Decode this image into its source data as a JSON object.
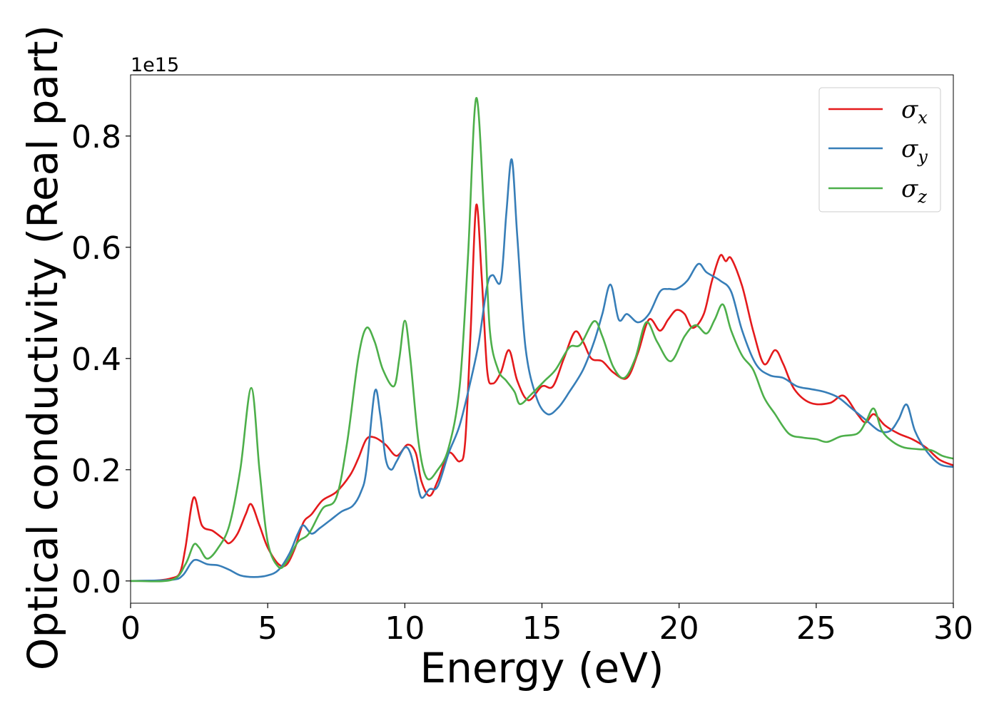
{
  "chart_data": {
    "type": "line",
    "title": "",
    "xlabel": "Energy (eV)",
    "ylabel": "Optical conductivity (Real part)",
    "y_offset_label": "1e15",
    "xlim": [
      0,
      30
    ],
    "ylim": [
      -0.04,
      0.91
    ],
    "xticks": [
      0,
      5,
      10,
      15,
      20,
      25,
      30
    ],
    "xtick_labels": [
      "0",
      "5",
      "10",
      "15",
      "20",
      "25",
      "30"
    ],
    "yticks": [
      0.0,
      0.2,
      0.4,
      0.6,
      0.8
    ],
    "ytick_labels": [
      "0.0",
      "0.2",
      "0.4",
      "0.6",
      "0.8"
    ],
    "grid": false,
    "legend_position": "top-right",
    "series": [
      {
        "name": "σx",
        "sym": "σ",
        "sub": "x",
        "color": "#e41a1c",
        "points": [
          [
            0,
            0
          ],
          [
            1,
            0.001
          ],
          [
            1.5,
            0.005
          ],
          [
            1.8,
            0.015
          ],
          [
            2.0,
            0.06
          ],
          [
            2.3,
            0.15
          ],
          [
            2.6,
            0.1
          ],
          [
            3.0,
            0.09
          ],
          [
            3.4,
            0.075
          ],
          [
            3.6,
            0.068
          ],
          [
            3.9,
            0.085
          ],
          [
            4.2,
            0.12
          ],
          [
            4.4,
            0.138
          ],
          [
            4.7,
            0.1
          ],
          [
            5.0,
            0.06
          ],
          [
            5.4,
            0.03
          ],
          [
            5.7,
            0.03
          ],
          [
            6.0,
            0.06
          ],
          [
            6.3,
            0.105
          ],
          [
            6.6,
            0.12
          ],
          [
            7.0,
            0.145
          ],
          [
            7.5,
            0.16
          ],
          [
            8.0,
            0.19
          ],
          [
            8.3,
            0.22
          ],
          [
            8.6,
            0.255
          ],
          [
            8.9,
            0.258
          ],
          [
            9.3,
            0.245
          ],
          [
            9.7,
            0.225
          ],
          [
            10.1,
            0.245
          ],
          [
            10.4,
            0.23
          ],
          [
            10.6,
            0.18
          ],
          [
            10.9,
            0.153
          ],
          [
            11.2,
            0.18
          ],
          [
            11.6,
            0.23
          ],
          [
            12.0,
            0.215
          ],
          [
            12.2,
            0.25
          ],
          [
            12.4,
            0.45
          ],
          [
            12.6,
            0.675
          ],
          [
            12.8,
            0.55
          ],
          [
            13.0,
            0.38
          ],
          [
            13.2,
            0.355
          ],
          [
            13.5,
            0.375
          ],
          [
            13.8,
            0.415
          ],
          [
            14.1,
            0.36
          ],
          [
            14.5,
            0.325
          ],
          [
            15.0,
            0.35
          ],
          [
            15.4,
            0.35
          ],
          [
            15.8,
            0.4
          ],
          [
            16.2,
            0.448
          ],
          [
            16.5,
            0.43
          ],
          [
            16.8,
            0.4
          ],
          [
            17.2,
            0.395
          ],
          [
            17.6,
            0.375
          ],
          [
            18.1,
            0.365
          ],
          [
            18.5,
            0.41
          ],
          [
            18.9,
            0.47
          ],
          [
            19.3,
            0.45
          ],
          [
            19.6,
            0.47
          ],
          [
            19.9,
            0.487
          ],
          [
            20.2,
            0.48
          ],
          [
            20.5,
            0.455
          ],
          [
            20.9,
            0.48
          ],
          [
            21.2,
            0.54
          ],
          [
            21.5,
            0.585
          ],
          [
            21.7,
            0.575
          ],
          [
            21.9,
            0.58
          ],
          [
            22.3,
            0.53
          ],
          [
            22.7,
            0.45
          ],
          [
            23.1,
            0.39
          ],
          [
            23.5,
            0.415
          ],
          [
            23.8,
            0.39
          ],
          [
            24.2,
            0.345
          ],
          [
            24.8,
            0.32
          ],
          [
            25.5,
            0.32
          ],
          [
            26.0,
            0.333
          ],
          [
            26.5,
            0.3
          ],
          [
            26.8,
            0.285
          ],
          [
            27.1,
            0.3
          ],
          [
            27.5,
            0.28
          ],
          [
            28.0,
            0.265
          ],
          [
            28.5,
            0.255
          ],
          [
            29.0,
            0.24
          ],
          [
            29.5,
            0.218
          ],
          [
            30.0,
            0.208
          ]
        ]
      },
      {
        "name": "σy",
        "sym": "σ",
        "sub": "y",
        "color": "#377eb8",
        "points": [
          [
            0,
            0
          ],
          [
            1.5,
            0.002
          ],
          [
            1.9,
            0.01
          ],
          [
            2.2,
            0.032
          ],
          [
            2.4,
            0.038
          ],
          [
            2.8,
            0.03
          ],
          [
            3.2,
            0.028
          ],
          [
            3.6,
            0.02
          ],
          [
            4.0,
            0.01
          ],
          [
            4.5,
            0.007
          ],
          [
            5.0,
            0.01
          ],
          [
            5.4,
            0.02
          ],
          [
            5.8,
            0.05
          ],
          [
            6.1,
            0.085
          ],
          [
            6.3,
            0.1
          ],
          [
            6.6,
            0.085
          ],
          [
            6.9,
            0.095
          ],
          [
            7.3,
            0.11
          ],
          [
            7.7,
            0.125
          ],
          [
            8.1,
            0.135
          ],
          [
            8.4,
            0.16
          ],
          [
            8.6,
            0.2
          ],
          [
            8.9,
            0.34
          ],
          [
            9.1,
            0.3
          ],
          [
            9.3,
            0.22
          ],
          [
            9.5,
            0.2
          ],
          [
            9.7,
            0.215
          ],
          [
            10.0,
            0.24
          ],
          [
            10.2,
            0.23
          ],
          [
            10.4,
            0.19
          ],
          [
            10.6,
            0.15
          ],
          [
            10.9,
            0.165
          ],
          [
            11.2,
            0.17
          ],
          [
            11.6,
            0.23
          ],
          [
            12.0,
            0.28
          ],
          [
            12.4,
            0.36
          ],
          [
            12.7,
            0.43
          ],
          [
            13.0,
            0.53
          ],
          [
            13.2,
            0.55
          ],
          [
            13.5,
            0.54
          ],
          [
            13.7,
            0.66
          ],
          [
            13.9,
            0.758
          ],
          [
            14.1,
            0.62
          ],
          [
            14.4,
            0.42
          ],
          [
            14.8,
            0.33
          ],
          [
            15.2,
            0.3
          ],
          [
            15.6,
            0.312
          ],
          [
            16.0,
            0.34
          ],
          [
            16.5,
            0.38
          ],
          [
            16.9,
            0.43
          ],
          [
            17.2,
            0.48
          ],
          [
            17.5,
            0.533
          ],
          [
            17.8,
            0.47
          ],
          [
            18.1,
            0.48
          ],
          [
            18.5,
            0.465
          ],
          [
            18.9,
            0.48
          ],
          [
            19.3,
            0.52
          ],
          [
            19.6,
            0.525
          ],
          [
            19.9,
            0.525
          ],
          [
            20.3,
            0.54
          ],
          [
            20.7,
            0.57
          ],
          [
            21.0,
            0.555
          ],
          [
            21.5,
            0.54
          ],
          [
            21.9,
            0.52
          ],
          [
            22.3,
            0.45
          ],
          [
            22.8,
            0.39
          ],
          [
            23.3,
            0.37
          ],
          [
            23.8,
            0.365
          ],
          [
            24.3,
            0.35
          ],
          [
            24.8,
            0.345
          ],
          [
            25.3,
            0.34
          ],
          [
            25.8,
            0.33
          ],
          [
            26.3,
            0.31
          ],
          [
            26.8,
            0.29
          ],
          [
            27.3,
            0.27
          ],
          [
            27.7,
            0.27
          ],
          [
            28.0,
            0.29
          ],
          [
            28.3,
            0.317
          ],
          [
            28.6,
            0.27
          ],
          [
            29.0,
            0.235
          ],
          [
            29.5,
            0.21
          ],
          [
            30.0,
            0.205
          ]
        ]
      },
      {
        "name": "σz",
        "sym": "σ",
        "sub": "z",
        "color": "#4daf4a",
        "points": [
          [
            0,
            0
          ],
          [
            1.5,
            0.002
          ],
          [
            2.0,
            0.03
          ],
          [
            2.3,
            0.065
          ],
          [
            2.5,
            0.06
          ],
          [
            2.8,
            0.04
          ],
          [
            3.2,
            0.06
          ],
          [
            3.6,
            0.1
          ],
          [
            4.0,
            0.2
          ],
          [
            4.4,
            0.347
          ],
          [
            4.7,
            0.2
          ],
          [
            5.0,
            0.07
          ],
          [
            5.4,
            0.025
          ],
          [
            5.7,
            0.035
          ],
          [
            6.1,
            0.07
          ],
          [
            6.5,
            0.085
          ],
          [
            7.0,
            0.13
          ],
          [
            7.5,
            0.15
          ],
          [
            7.9,
            0.25
          ],
          [
            8.3,
            0.4
          ],
          [
            8.6,
            0.455
          ],
          [
            8.9,
            0.43
          ],
          [
            9.2,
            0.38
          ],
          [
            9.6,
            0.35
          ],
          [
            9.8,
            0.4
          ],
          [
            10.0,
            0.468
          ],
          [
            10.2,
            0.4
          ],
          [
            10.5,
            0.25
          ],
          [
            10.8,
            0.185
          ],
          [
            11.2,
            0.2
          ],
          [
            11.6,
            0.24
          ],
          [
            12.0,
            0.35
          ],
          [
            12.3,
            0.58
          ],
          [
            12.6,
            0.868
          ],
          [
            12.9,
            0.65
          ],
          [
            13.1,
            0.45
          ],
          [
            13.4,
            0.38
          ],
          [
            13.7,
            0.36
          ],
          [
            14.0,
            0.34
          ],
          [
            14.2,
            0.318
          ],
          [
            14.6,
            0.335
          ],
          [
            15.1,
            0.36
          ],
          [
            15.5,
            0.38
          ],
          [
            16.0,
            0.42
          ],
          [
            16.4,
            0.425
          ],
          [
            16.9,
            0.467
          ],
          [
            17.2,
            0.44
          ],
          [
            17.6,
            0.385
          ],
          [
            18.0,
            0.365
          ],
          [
            18.4,
            0.4
          ],
          [
            18.8,
            0.465
          ],
          [
            19.2,
            0.43
          ],
          [
            19.7,
            0.395
          ],
          [
            20.2,
            0.44
          ],
          [
            20.6,
            0.46
          ],
          [
            21.0,
            0.445
          ],
          [
            21.3,
            0.47
          ],
          [
            21.6,
            0.497
          ],
          [
            21.9,
            0.45
          ],
          [
            22.3,
            0.405
          ],
          [
            22.7,
            0.38
          ],
          [
            23.1,
            0.33
          ],
          [
            23.5,
            0.3
          ],
          [
            24.0,
            0.265
          ],
          [
            24.5,
            0.258
          ],
          [
            25.0,
            0.255
          ],
          [
            25.4,
            0.25
          ],
          [
            25.9,
            0.26
          ],
          [
            26.5,
            0.265
          ],
          [
            26.8,
            0.285
          ],
          [
            27.1,
            0.31
          ],
          [
            27.4,
            0.27
          ],
          [
            27.8,
            0.25
          ],
          [
            28.2,
            0.24
          ],
          [
            28.7,
            0.237
          ],
          [
            29.2,
            0.235
          ],
          [
            29.6,
            0.225
          ],
          [
            30.0,
            0.22
          ]
        ]
      }
    ]
  }
}
